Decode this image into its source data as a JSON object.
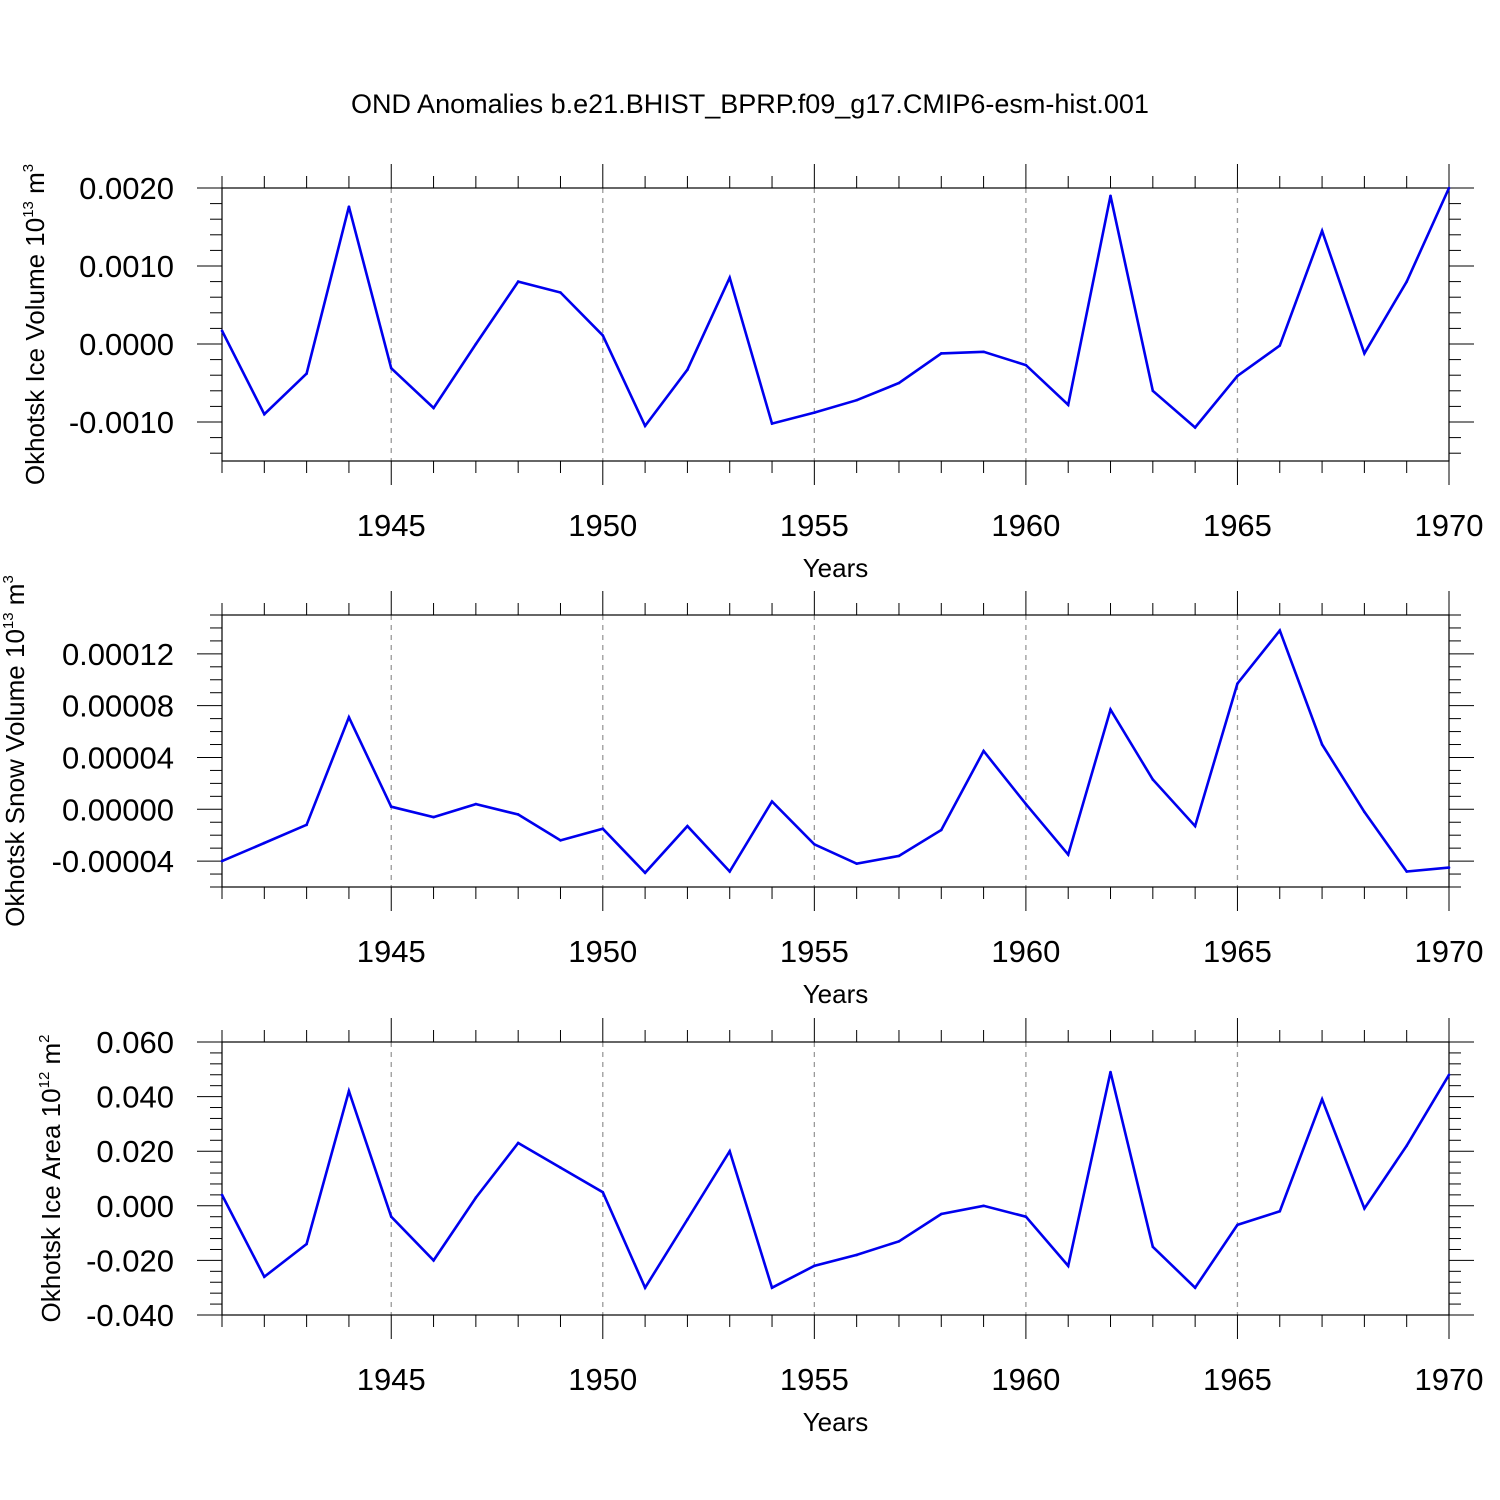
{
  "title": "OND Anomalies b.e21.BHIST_BPRP.f09_g17.CMIP6-esm-hist.001",
  "colors": {
    "line": "#0000ee",
    "axis": "#000000",
    "grid": "#9a9a9a"
  },
  "chart_data": [
    {
      "type": "line",
      "title": "OND Anomalies b.e21.BHIST_BPRP.f09_g17.CMIP6-esm-hist.001",
      "xlabel": "Years",
      "ylabel": {
        "main": "Okhotsk Ice Volume 10",
        "exp": "13",
        "unit": " m",
        "unit_exp": "3"
      },
      "xlim": [
        1941,
        1970
      ],
      "ylim": [
        -0.0015,
        0.002
      ],
      "xticks": [
        1945,
        1950,
        1955,
        1960,
        1965,
        1970
      ],
      "yticks": [
        -0.001,
        0.0,
        0.001,
        0.002
      ],
      "ytick_labels": [
        "-0.0010",
        "0.0000",
        "0.0010",
        "0.0020"
      ],
      "yminor_step": 0.0002,
      "grid": "vertical-dashed",
      "series": [
        {
          "name": "Okhotsk Ice Volume",
          "x": [
            1941,
            1942,
            1943,
            1944,
            1945,
            1946,
            1947,
            1948,
            1949,
            1950,
            1951,
            1952,
            1953,
            1954,
            1955,
            1956,
            1957,
            1958,
            1959,
            1960,
            1961,
            1962,
            1963,
            1964,
            1965,
            1966,
            1967,
            1968,
            1969,
            1970
          ],
          "values": [
            0.00017,
            -0.0009,
            -0.00038,
            0.00176,
            -0.00031,
            -0.00082,
            0.0,
            0.0008,
            0.00066,
            0.00011,
            -0.00105,
            -0.00033,
            0.00085,
            -0.00102,
            -0.00088,
            -0.00072,
            -0.0005,
            -0.00012,
            -0.0001,
            -0.00027,
            -0.00078,
            0.0019,
            -0.0006,
            -0.00107,
            -0.00041,
            -2e-05,
            0.00145,
            -0.00012,
            0.0008,
            0.002
          ]
        }
      ]
    },
    {
      "type": "line",
      "xlabel": "Years",
      "ylabel": {
        "main": "Okhotsk Snow Volume 10",
        "exp": "13",
        "unit": " m",
        "unit_exp": "3"
      },
      "xlim": [
        1941,
        1970
      ],
      "ylim": [
        -6e-05,
        0.00015
      ],
      "xticks": [
        1945,
        1950,
        1955,
        1960,
        1965,
        1970
      ],
      "yticks": [
        -4e-05,
        0.0,
        4e-05,
        8e-05,
        0.00012
      ],
      "ytick_labels": [
        "-0.00004",
        "0.00000",
        "0.00004",
        "0.00008",
        "0.00012"
      ],
      "yminor_step": 1e-05,
      "grid": "vertical-dashed",
      "series": [
        {
          "name": "Okhotsk Snow Volume",
          "x": [
            1941,
            1942,
            1943,
            1944,
            1945,
            1946,
            1947,
            1948,
            1949,
            1950,
            1951,
            1952,
            1953,
            1954,
            1955,
            1956,
            1957,
            1958,
            1959,
            1960,
            1961,
            1962,
            1963,
            1964,
            1965,
            1966,
            1967,
            1968,
            1969,
            1970
          ],
          "values": [
            -4e-05,
            -2.6e-05,
            -1.2e-05,
            7.1e-05,
            2e-06,
            -6e-06,
            4e-06,
            -4e-06,
            -2.4e-05,
            -1.5e-05,
            -4.9e-05,
            -1.3e-05,
            -4.8e-05,
            6e-06,
            -2.7e-05,
            -4.2e-05,
            -3.6e-05,
            -1.6e-05,
            4.5e-05,
            4e-06,
            -3.5e-05,
            7.7e-05,
            2.3e-05,
            -1.3e-05,
            9.7e-05,
            0.000138,
            5e-05,
            -2e-06,
            -4.8e-05,
            -4.5e-05
          ]
        }
      ]
    },
    {
      "type": "line",
      "xlabel": "Years",
      "ylabel": {
        "main": "Okhotsk Ice Area 10",
        "exp": "12",
        "unit": " m",
        "unit_exp": "2"
      },
      "xlim": [
        1941,
        1970
      ],
      "ylim": [
        -0.04,
        0.06
      ],
      "xticks": [
        1945,
        1950,
        1955,
        1960,
        1965,
        1970
      ],
      "yticks": [
        -0.04,
        -0.02,
        0.0,
        0.02,
        0.04,
        0.06
      ],
      "ytick_labels": [
        "-0.040",
        "-0.020",
        "0.000",
        "0.020",
        "0.040",
        "0.060"
      ],
      "yminor_step": 0.004,
      "grid": "vertical-dashed",
      "series": [
        {
          "name": "Okhotsk Ice Area",
          "x": [
            1941,
            1942,
            1943,
            1944,
            1945,
            1946,
            1947,
            1948,
            1949,
            1950,
            1951,
            1952,
            1953,
            1954,
            1955,
            1956,
            1957,
            1958,
            1959,
            1960,
            1961,
            1962,
            1963,
            1964,
            1965,
            1966,
            1967,
            1968,
            1969,
            1970
          ],
          "values": [
            0.004,
            -0.026,
            -0.014,
            0.042,
            -0.004,
            -0.02,
            0.003,
            0.023,
            0.014,
            0.005,
            -0.03,
            -0.005,
            0.02,
            -0.03,
            -0.022,
            -0.018,
            -0.013,
            -0.003,
            0.0,
            -0.004,
            -0.022,
            0.049,
            -0.015,
            -0.03,
            -0.007,
            -0.002,
            0.039,
            -0.001,
            0.022,
            0.048
          ]
        }
      ]
    }
  ]
}
